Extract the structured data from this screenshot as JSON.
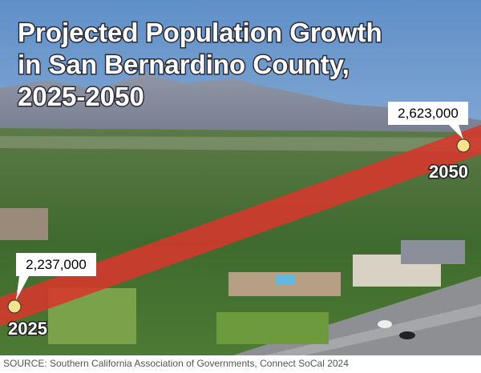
{
  "chart_data": {
    "type": "line",
    "title": [
      "Projected Population Growth",
      "in San Bernardino County,",
      "2025-2050"
    ],
    "x": [
      2025,
      2050
    ],
    "values": [
      2237000,
      2623000
    ],
    "value_labels": [
      "2,237,000",
      "2,623,000"
    ],
    "color": "#d7372b",
    "point_color": "#f6e38c",
    "source": "SOURCE: Southern California Association of Governments, Connect SoCal 2024"
  }
}
